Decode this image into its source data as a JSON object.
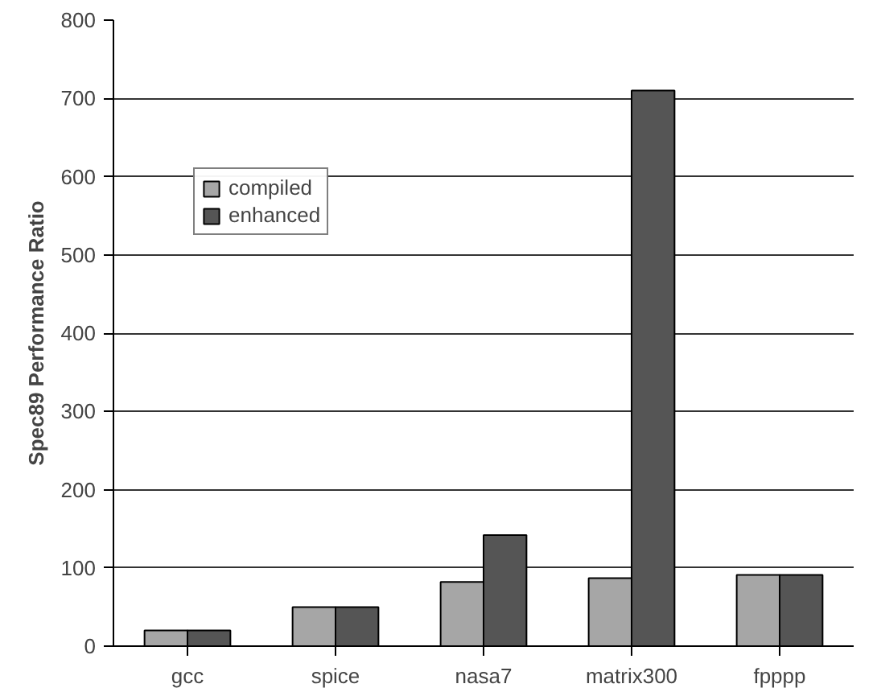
{
  "chart_data": {
    "type": "bar",
    "ylabel": "Spec89 Performance Ratio",
    "categories": [
      "gcc",
      "spice",
      "nasa7",
      "matrix300",
      "fpppp"
    ],
    "series": [
      {
        "name": "compiled",
        "color": "#a6a6a6",
        "values": [
          20,
          50,
          82,
          87,
          91
        ]
      },
      {
        "name": "enhanced",
        "color": "#555555",
        "values": [
          20,
          50,
          142,
          710,
          91
        ]
      }
    ],
    "ylim": [
      0,
      800
    ],
    "yticks": [
      0,
      100,
      200,
      300,
      400,
      500,
      600,
      700,
      800
    ],
    "grid": "y",
    "legend": "top left"
  }
}
